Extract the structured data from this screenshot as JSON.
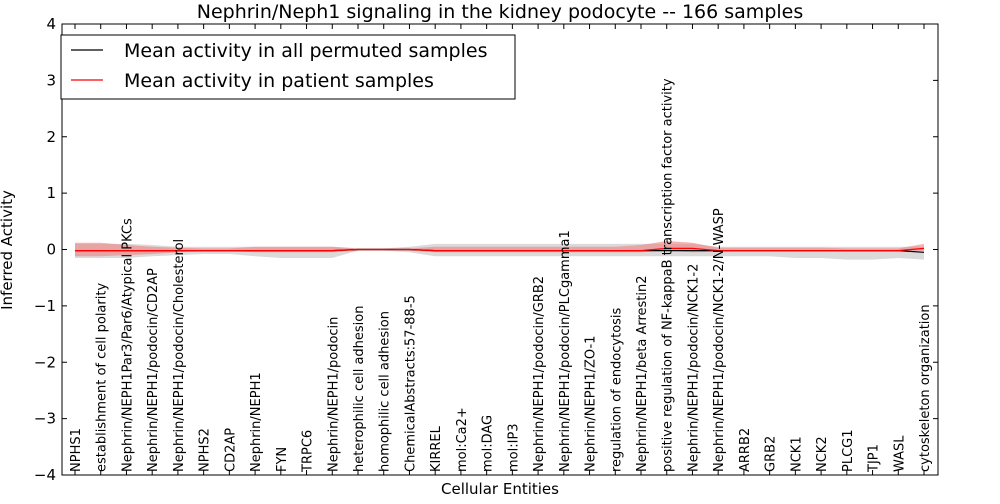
{
  "chart_data": {
    "type": "line",
    "title": "Nephrin/Neph1 signaling in the kidney podocyte -- 166 samples",
    "xlabel": "Cellular Entities",
    "ylabel": "Inferred Activity",
    "ylim": [
      -4,
      4
    ],
    "yticks": [
      -4,
      -3,
      -2,
      -1,
      0,
      1,
      2,
      3,
      4
    ],
    "ytick_labels": [
      "−4",
      "−3",
      "−2",
      "−1",
      "0",
      "1",
      "2",
      "3",
      "4"
    ],
    "grid": false,
    "legend_position": "top-left",
    "categories": [
      "NPHS1",
      "establishment of cell polarity",
      "Nephrin/NEPH1Par3/Par6/Atypical PKCs",
      "Nephrin/NEPH1/podocin/CD2AP",
      "Nephrin/NEPH1/podocin/Cholesterol",
      "NPHS2",
      "CD2AP",
      "Nephrin/NEPH1",
      "FYN",
      "TRPC6",
      "Nephrin/NEPH1/podocin",
      "heterophilic cell adhesion",
      "homophilic cell adhesion",
      "ChemicalAbstracts:57-88-5",
      "KIRREL",
      "mol:Ca2+",
      "mol:DAG",
      "mol:IP3",
      "Nephrin/NEPH1/podocin/GRB2",
      "Nephrin/NEPH1/podocin/PLCgamma1",
      "Nephrin/NEPH1/ZO-1",
      "regulation of endocytosis",
      "Nephrin/NEPH1/beta Arrestin2",
      "positive regulation of NF-kappaB transcription factor activity",
      "Nephrin/NEPH1/podocin/NCK1-2",
      "Nephrin/NEPH1/podocin/NCK1-2/N-WASP",
      "ARRB2",
      "GRB2",
      "NCK1",
      "NCK2",
      "PLCG1",
      "TJP1",
      "WASL",
      "cytoskeleton organization"
    ],
    "series": [
      {
        "name": "Mean activity in all permuted samples",
        "color": "#000000",
        "band_color": "#bbbbbb",
        "values": [
          -0.02,
          -0.02,
          -0.02,
          -0.02,
          -0.02,
          -0.02,
          -0.02,
          -0.02,
          -0.02,
          -0.02,
          -0.02,
          0,
          0,
          0,
          -0.02,
          -0.02,
          -0.02,
          -0.02,
          -0.02,
          -0.02,
          -0.02,
          -0.02,
          -0.02,
          -0.02,
          -0.02,
          -0.02,
          -0.02,
          -0.02,
          -0.02,
          -0.02,
          -0.02,
          -0.02,
          -0.02,
          -0.05
        ],
        "band_upper": [
          0.1,
          0.1,
          0.1,
          0.08,
          0.05,
          0.05,
          0.05,
          0.05,
          0.05,
          0.05,
          0.05,
          0.02,
          0.02,
          0.05,
          0.1,
          0.1,
          0.1,
          0.1,
          0.1,
          0.1,
          0.1,
          0.1,
          0.1,
          0.1,
          0.1,
          0.05,
          0.05,
          0.05,
          0.05,
          0.05,
          0.05,
          0.05,
          0.05,
          0.05
        ],
        "band_lower": [
          -0.15,
          -0.15,
          -0.15,
          -0.12,
          -0.1,
          -0.08,
          -0.08,
          -0.12,
          -0.15,
          -0.15,
          -0.15,
          -0.02,
          -0.02,
          -0.05,
          -0.12,
          -0.12,
          -0.12,
          -0.12,
          -0.12,
          -0.12,
          -0.12,
          -0.12,
          -0.12,
          -0.12,
          -0.12,
          -0.12,
          -0.12,
          -0.12,
          -0.15,
          -0.15,
          -0.18,
          -0.18,
          -0.15,
          -0.18
        ]
      },
      {
        "name": "Mean activity in patient samples",
        "color": "#ff0000",
        "band_color": "#f08080",
        "values": [
          -0.02,
          -0.02,
          -0.02,
          -0.02,
          -0.02,
          -0.02,
          -0.02,
          -0.02,
          -0.02,
          -0.02,
          -0.02,
          0,
          0,
          0,
          -0.02,
          -0.02,
          -0.02,
          -0.02,
          -0.02,
          -0.02,
          -0.02,
          -0.02,
          -0.02,
          0.02,
          0.02,
          -0.02,
          -0.02,
          -0.02,
          -0.02,
          -0.02,
          -0.02,
          -0.02,
          -0.02,
          0.02
        ],
        "band_upper": [
          0.12,
          0.12,
          0.08,
          0.05,
          0.03,
          0.02,
          0.02,
          0.05,
          0.05,
          0.05,
          0.05,
          0.02,
          0.02,
          0.02,
          0.05,
          0.05,
          0.05,
          0.05,
          0.05,
          0.05,
          0.05,
          0.05,
          0.08,
          0.15,
          0.12,
          0.03,
          0.03,
          0.03,
          0.03,
          0.03,
          0.02,
          0.02,
          0.02,
          0.1
        ],
        "band_lower": [
          -0.12,
          -0.12,
          -0.1,
          -0.08,
          -0.05,
          -0.03,
          -0.03,
          -0.05,
          -0.05,
          -0.05,
          -0.05,
          -0.02,
          -0.02,
          -0.02,
          -0.05,
          -0.05,
          -0.05,
          -0.05,
          -0.05,
          -0.05,
          -0.05,
          -0.05,
          -0.05,
          -0.02,
          -0.05,
          -0.04,
          -0.03,
          -0.03,
          -0.03,
          -0.03,
          -0.03,
          -0.03,
          -0.03,
          -0.02
        ]
      }
    ]
  }
}
